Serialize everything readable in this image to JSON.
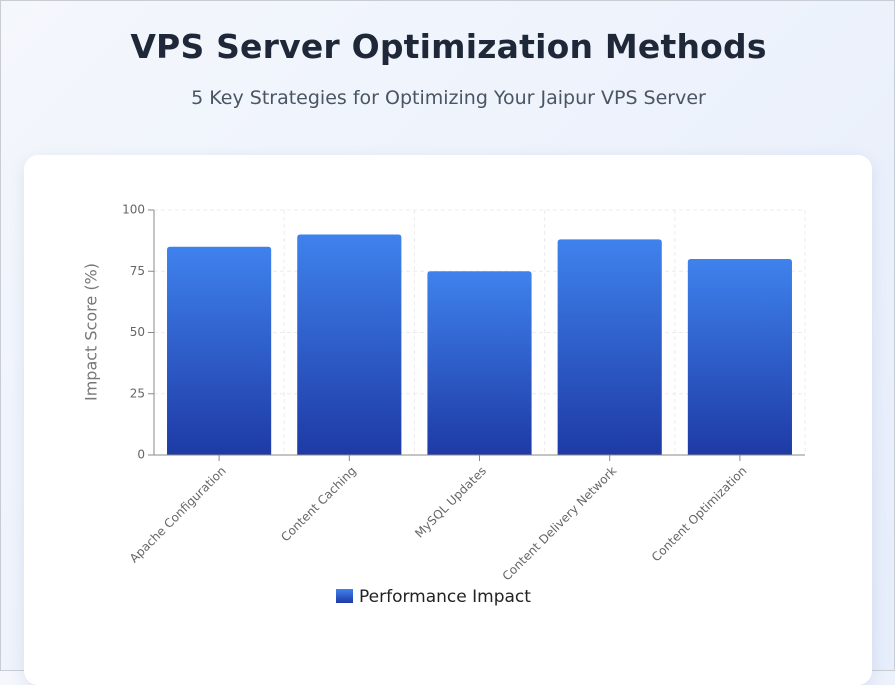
{
  "header": {
    "title": "VPS Server Optimization Methods",
    "subtitle": "5 Key Strategies for Optimizing Your Jaipur VPS Server"
  },
  "chart_data": {
    "type": "bar",
    "categories": [
      "Apache Configuration",
      "Content Caching",
      "MySQL Updates",
      "Content Delivery Network",
      "Content Optimization"
    ],
    "series": [
      {
        "name": "Performance Impact",
        "values": [
          85,
          90,
          75,
          88,
          80
        ]
      }
    ],
    "xlabel": "",
    "ylabel": "Impact Score (%)",
    "ylim": [
      0,
      100
    ],
    "yticks": [
      0,
      25,
      50,
      75,
      100
    ],
    "grid": true,
    "legend": "bottom-center",
    "colors": {
      "bar_top": "#3f82ed",
      "bar_bottom": "#1e3aa5"
    }
  }
}
